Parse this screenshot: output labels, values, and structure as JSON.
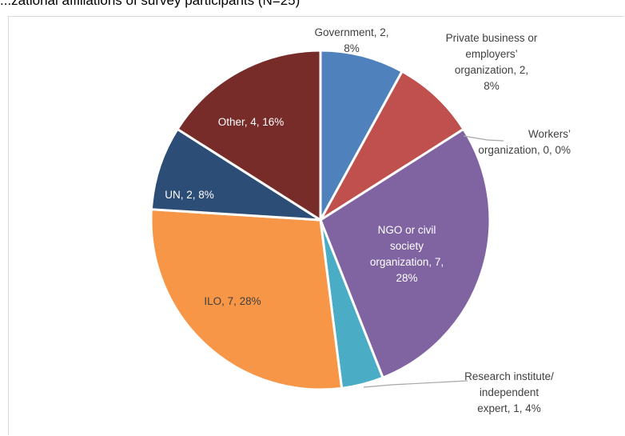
{
  "chart_data": {
    "type": "pie",
    "title": "...zational affiliations of survey participants (N=25)",
    "slices": [
      {
        "name": "Government",
        "value": 2,
        "percent": "8%",
        "color": "#4f81bd",
        "label_lines": [
          "Government, 2,",
          "8%"
        ]
      },
      {
        "name": "Private business or employers' organization",
        "value": 2,
        "percent": "8%",
        "color": "#c0504d",
        "label_lines": [
          "Private business or",
          "employers’",
          "organization, 2,",
          "8%"
        ]
      },
      {
        "name": "Workers' organization",
        "value": 0,
        "percent": "0%",
        "color": "#9bbb59",
        "label_lines": [
          "Workers’",
          "organization, 0, 0%"
        ]
      },
      {
        "name": "NGO or civil society organization",
        "value": 7,
        "percent": "28%",
        "color": "#8064a2",
        "label_lines": [
          "NGO or civil",
          "society",
          "organization, 7,",
          "28%"
        ]
      },
      {
        "name": "Research institute/ independent expert",
        "value": 1,
        "percent": "4%",
        "color": "#4bacc6",
        "label_lines": [
          "Research institute/",
          "independent",
          "expert, 1, 4%"
        ]
      },
      {
        "name": "ILO",
        "value": 7,
        "percent": "28%",
        "color": "#f79646",
        "label_lines": [
          "ILO, 7, 28%"
        ]
      },
      {
        "name": "UN",
        "value": 2,
        "percent": "8%",
        "color": "#2c4d75",
        "label_lines": [
          "UN, 2, 8%"
        ]
      },
      {
        "name": "Other",
        "value": 4,
        "percent": "16%",
        "color": "#772c2a",
        "label_lines": [
          "Other, 4, 16%"
        ]
      }
    ]
  }
}
